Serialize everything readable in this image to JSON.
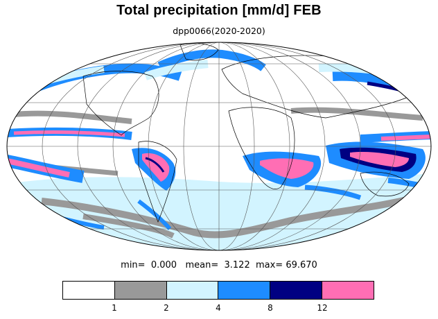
{
  "title": "Total precipitation [mm/d] FEB",
  "subtitle": "dpp0066(2020-2020)",
  "stats": {
    "min_label": "min=",
    "min_value": "0.000",
    "mean_label": "mean=",
    "mean_value": "3.122",
    "max_label": "max=",
    "max_value": "69.670"
  },
  "projection": "mollweide",
  "colorbar": {
    "colors": [
      "#ffffff",
      "#999999",
      "#d2f4ff",
      "#1e8cff",
      "#000082",
      "#ff6eb4"
    ],
    "tick_labels": [
      "1",
      "2",
      "4",
      "8",
      "12"
    ]
  }
}
